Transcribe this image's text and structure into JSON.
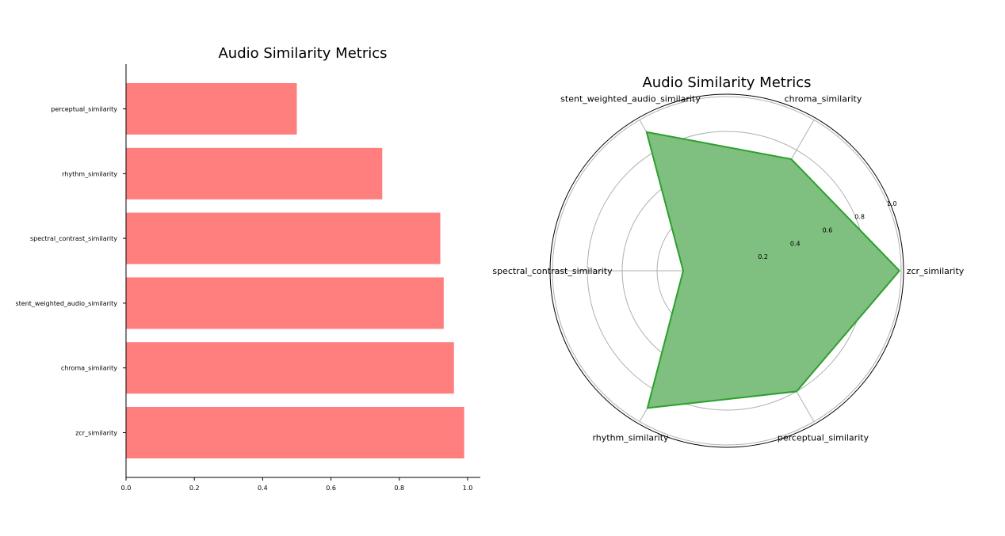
{
  "chart_data": [
    {
      "type": "bar",
      "orientation": "horizontal",
      "title": "Audio Similarity Metrics",
      "categories": [
        "zcr_similarity",
        "chroma_similarity",
        "stent_weighted_audio_similarity",
        "spectral_contrast_similarity",
        "rhythm_similarity",
        "perceptual_similarity"
      ],
      "values": [
        0.99,
        0.96,
        0.93,
        0.92,
        0.75,
        0.5
      ],
      "xlim": [
        0,
        1.04
      ],
      "xticks": [
        "0.0",
        "0.2",
        "0.4",
        "0.6",
        "0.8",
        "1.0"
      ],
      "xlabel": "",
      "ylabel": "",
      "bar_color": "#ff7f7f",
      "grid": false
    },
    {
      "type": "radar",
      "title": "Audio Similarity Metrics",
      "categories": [
        "zcr_similarity",
        "chroma_similarity",
        "stent_weighted_audio_similarity",
        "spectral_contrast_similarity",
        "rhythm_similarity",
        "perceptual_similarity"
      ],
      "values": [
        0.99,
        0.74,
        0.92,
        0.25,
        0.91,
        0.8
      ],
      "rlim": [
        0,
        1.0
      ],
      "rticks": [
        "0.2",
        "0.4",
        "0.6",
        "0.8",
        "1.0"
      ],
      "fill_color": "#7fbf7f",
      "line_color": "#2ca02c",
      "grid": true
    }
  ]
}
